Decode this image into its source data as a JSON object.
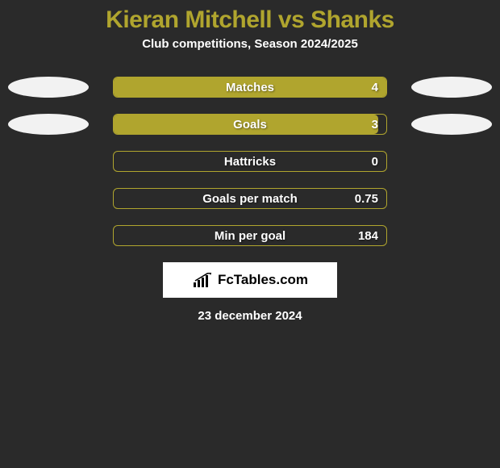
{
  "background_color": "#2a2a2a",
  "title": {
    "text": "Kieran Mitchell vs Shanks",
    "color": "#b0a52e",
    "fontsize": 30
  },
  "subtitle": {
    "text": "Club competitions, Season 2024/2025",
    "color": "#ffffff",
    "fontsize": 15
  },
  "bar_area": {
    "border_color": "#b0a52e",
    "fill_color": "#b0a52e",
    "label_color": "#ffffff",
    "value_color": "#ffffff",
    "label_fontsize": 15,
    "value_fontsize": 15
  },
  "ellipse_left_color": "#f2f2f2",
  "ellipse_right_color": "#f2f2f2",
  "rows": [
    {
      "label": "Matches",
      "value": "4",
      "fill_pct": 100,
      "show_left_ellipse": true,
      "show_right_ellipse": true
    },
    {
      "label": "Goals",
      "value": "3",
      "fill_pct": 97,
      "show_left_ellipse": true,
      "show_right_ellipse": true
    },
    {
      "label": "Hattricks",
      "value": "0",
      "fill_pct": 0,
      "show_left_ellipse": false,
      "show_right_ellipse": false
    },
    {
      "label": "Goals per match",
      "value": "0.75",
      "fill_pct": 0,
      "show_left_ellipse": false,
      "show_right_ellipse": false
    },
    {
      "label": "Min per goal",
      "value": "184",
      "fill_pct": 0,
      "show_left_ellipse": false,
      "show_right_ellipse": false
    }
  ],
  "logo": {
    "box_bg": "#ffffff",
    "icon_color": "#000000",
    "text": "FcTables.com",
    "text_color": "#000000",
    "fontsize": 17
  },
  "date": {
    "text": "23 december 2024",
    "color": "#ffffff",
    "fontsize": 15
  }
}
